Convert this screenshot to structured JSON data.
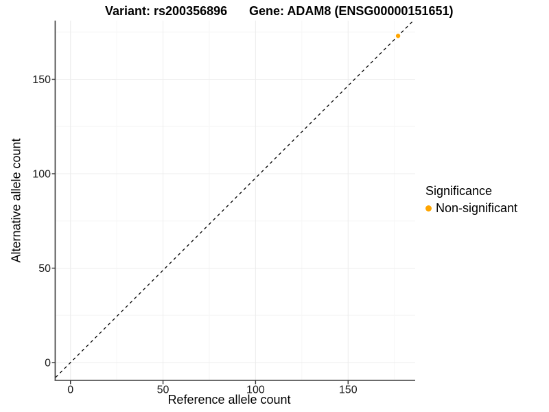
{
  "chart_data": {
    "type": "scatter",
    "titles": {
      "left": "Variant: rs200356896",
      "right": "Gene: ADAM8 (ENSG00000151651)"
    },
    "xlabel": "Reference allele count",
    "ylabel": "Alternative allele count",
    "x_ticks": [
      0,
      50,
      100,
      150
    ],
    "y_ticks": [
      0,
      50,
      100,
      150
    ],
    "minor_break_step": 25,
    "xlim": [
      -8,
      186
    ],
    "ylim": [
      -9,
      181
    ],
    "grid": {
      "major": true,
      "minor": true
    },
    "series": [
      {
        "name": "Non-significant",
        "color": "#FFA500",
        "points": [
          {
            "x": 177,
            "y": 173
          }
        ]
      }
    ],
    "reference_line": {
      "equation": "y = x",
      "style": "dashed",
      "color": "#000000"
    },
    "legend": {
      "title": "Significance",
      "position": "right",
      "entries": [
        {
          "label": "Non-significant",
          "color": "#FFA500"
        }
      ]
    }
  },
  "colors": {
    "background": "#FFFFFF",
    "grid_major": "#EDEDED",
    "grid_minor": "#F6F6F6",
    "axis_line": "#3F3F3F",
    "tick_mark": "#333333",
    "tick_label": "#1A1A1A",
    "point": "#FFA500"
  }
}
